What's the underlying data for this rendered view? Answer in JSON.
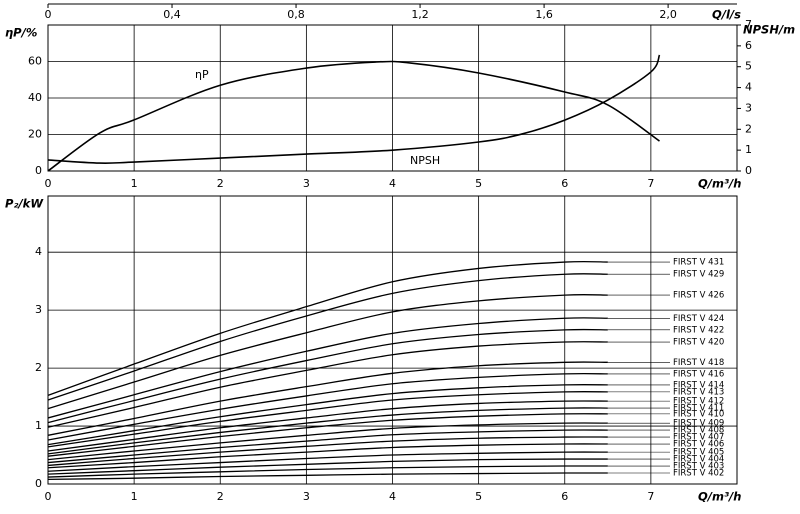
{
  "chart_data": [
    {
      "type": "line",
      "xlabel": "Q/m³/h",
      "x2label": "Q/l/s",
      "ylabel": "ηP/%",
      "y2label": "NPSH/m",
      "xlim": [
        0,
        8
      ],
      "xticks": [
        0,
        1,
        2,
        3,
        4,
        5,
        6,
        7
      ],
      "x2lim": [
        0,
        2.2222
      ],
      "x2ticks": [
        0,
        {
          "value": 0.4,
          "label": "0,4"
        },
        {
          "value": 0.8,
          "label": "0,8"
        },
        {
          "value": 1.2,
          "label": "1,2"
        },
        {
          "value": 1.6,
          "label": "1,6"
        },
        {
          "value": 2.0,
          "label": "2,0"
        }
      ],
      "ylim": [
        0,
        80
      ],
      "yticks": [
        0,
        20,
        40,
        60
      ],
      "y2lim": [
        0,
        7
      ],
      "y2ticks": [
        0,
        1,
        2,
        3,
        4,
        5,
        6,
        7
      ],
      "grid": true,
      "color": "#000000",
      "series": [
        {
          "name": "ηP",
          "x": [
            0,
            0.6,
            1,
            2,
            3,
            3.8,
            4.2,
            5,
            6,
            6.5,
            7.1
          ],
          "values": [
            0,
            20.8,
            28,
            47,
            56.4,
            59.7,
            59.2,
            53.7,
            43.3,
            36.2,
            16.4
          ]
        },
        {
          "name": "NPSH",
          "axis": "y2",
          "x": [
            0,
            0.6,
            1,
            2,
            3,
            4,
            5,
            5.5,
            6,
            6.5,
            7,
            7.1
          ],
          "values": [
            0.53,
            0.38,
            0.43,
            0.62,
            0.81,
            1.0,
            1.39,
            1.77,
            2.44,
            3.4,
            4.75,
            5.56
          ]
        }
      ]
    },
    {
      "type": "line",
      "xlabel": "Q/m³/h",
      "ylabel": "P₂/kW",
      "xlim": [
        0,
        8
      ],
      "xticks": [
        0,
        1,
        2,
        3,
        4,
        5,
        6,
        7
      ],
      "ylim": [
        0,
        4.97
      ],
      "yticks": [
        0,
        1,
        2,
        3,
        4
      ],
      "grid": true,
      "color": "#000000",
      "x": [
        0,
        1,
        2,
        3,
        4,
        5,
        6,
        6.5
      ],
      "series": [
        {
          "name": "FIRST V 431",
          "values": [
            1.53,
            2.07,
            2.6,
            3.06,
            3.49,
            3.72,
            3.83,
            3.83
          ]
        },
        {
          "name": "FIRST V 429",
          "values": [
            1.45,
            1.95,
            2.46,
            2.9,
            3.29,
            3.51,
            3.62,
            3.62
          ]
        },
        {
          "name": "FIRST V 426",
          "values": [
            1.3,
            1.76,
            2.22,
            2.61,
            2.97,
            3.16,
            3.26,
            3.26
          ]
        },
        {
          "name": "FIRST V 424",
          "values": [
            1.14,
            1.54,
            1.94,
            2.29,
            2.6,
            2.77,
            2.86,
            2.86
          ]
        },
        {
          "name": "FIRST V 422",
          "values": [
            1.06,
            1.44,
            1.81,
            2.13,
            2.42,
            2.58,
            2.66,
            2.66
          ]
        },
        {
          "name": "FIRST V 420",
          "values": [
            0.98,
            1.32,
            1.67,
            1.96,
            2.23,
            2.38,
            2.45,
            2.45
          ]
        },
        {
          "name": "FIRST V 418",
          "values": [
            0.84,
            1.13,
            1.43,
            1.68,
            1.91,
            2.04,
            2.1,
            2.1
          ]
        },
        {
          "name": "FIRST V 416",
          "values": [
            0.76,
            1.03,
            1.29,
            1.52,
            1.73,
            1.84,
            1.9,
            1.9
          ]
        },
        {
          "name": "FIRST V 414",
          "values": [
            0.68,
            0.92,
            1.16,
            1.37,
            1.56,
            1.66,
            1.71,
            1.71
          ]
        },
        {
          "name": "FIRST V 413",
          "values": [
            0.64,
            0.86,
            1.08,
            1.27,
            1.45,
            1.54,
            1.59,
            1.59
          ]
        },
        {
          "name": "FIRST V 412",
          "values": [
            0.57,
            0.77,
            0.97,
            1.14,
            1.3,
            1.39,
            1.43,
            1.43
          ]
        },
        {
          "name": "FIRST V 411",
          "values": [
            0.52,
            0.71,
            0.89,
            1.05,
            1.19,
            1.27,
            1.31,
            1.31
          ]
        },
        {
          "name": "FIRST V 410",
          "values": [
            0.48,
            0.65,
            0.82,
            0.97,
            1.1,
            1.17,
            1.21,
            1.21
          ]
        },
        {
          "name": "FIRST V 409",
          "values": [
            0.42,
            0.57,
            0.71,
            0.84,
            0.96,
            1.02,
            1.05,
            1.05
          ]
        },
        {
          "name": "FIRST V 408",
          "values": [
            0.37,
            0.5,
            0.63,
            0.74,
            0.85,
            0.9,
            0.93,
            0.93
          ]
        },
        {
          "name": "FIRST V 407",
          "values": [
            0.32,
            0.44,
            0.55,
            0.65,
            0.74,
            0.79,
            0.81,
            0.81
          ]
        },
        {
          "name": "FIRST V 406",
          "values": [
            0.28,
            0.37,
            0.47,
            0.55,
            0.63,
            0.67,
            0.69,
            0.69
          ]
        },
        {
          "name": "FIRST V 405",
          "values": [
            0.22,
            0.3,
            0.37,
            0.44,
            0.5,
            0.53,
            0.55,
            0.55
          ]
        },
        {
          "name": "FIRST V 404",
          "values": [
            0.17,
            0.23,
            0.29,
            0.34,
            0.39,
            0.42,
            0.43,
            0.43
          ]
        },
        {
          "name": "FIRST V 403",
          "values": [
            0.12,
            0.17,
            0.21,
            0.25,
            0.28,
            0.3,
            0.31,
            0.31
          ]
        },
        {
          "name": "FIRST V 402",
          "values": [
            0.08,
            0.1,
            0.13,
            0.15,
            0.17,
            0.18,
            0.19,
            0.19
          ]
        }
      ]
    }
  ]
}
